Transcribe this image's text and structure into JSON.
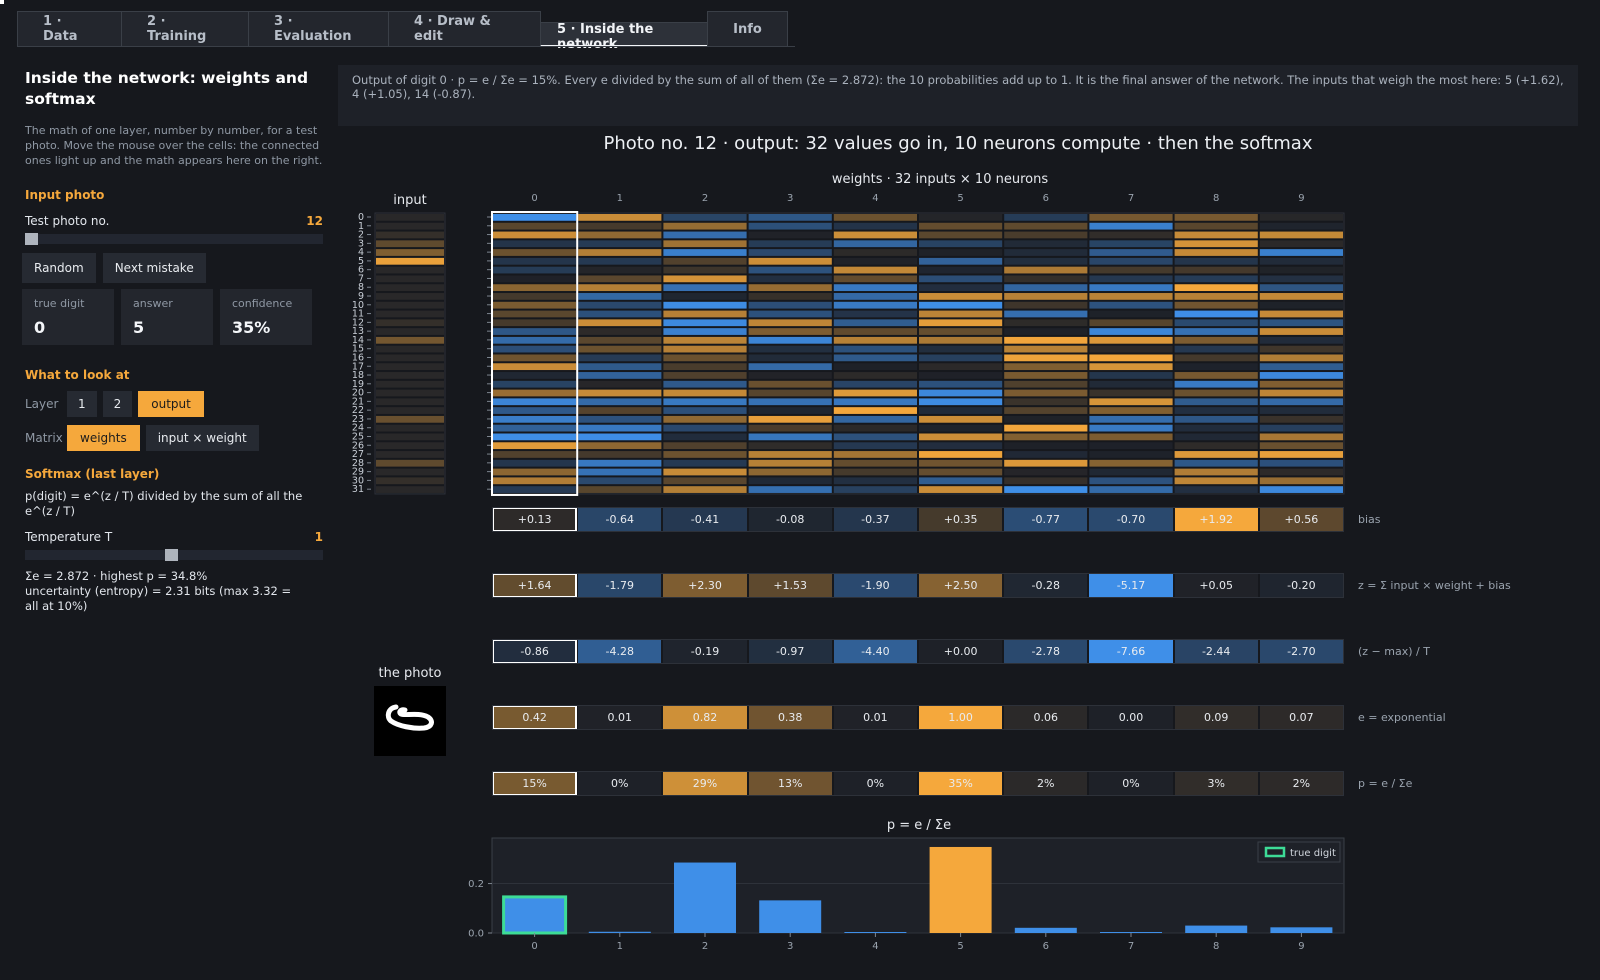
{
  "tabs": [
    {
      "label": "1 · Data",
      "active": false
    },
    {
      "label": "2 · Training",
      "active": false
    },
    {
      "label": "3 · Evaluation",
      "active": false
    },
    {
      "label": "4 · Draw & edit",
      "active": false
    },
    {
      "label": "5 · Inside the network",
      "active": true
    },
    {
      "label": "Info",
      "active": false
    }
  ],
  "sidebar": {
    "title": "Inside the network: weights and softmax",
    "description": "The math of one layer, number by number, for a test photo. Move the mouse over the cells: the connected ones light up and the math appears here on the right.",
    "input_section": "Input photo",
    "photo_label": "Test photo no.",
    "photo_value": "12",
    "photo_slider_fraction": 0.0,
    "random_button": "Random",
    "next_mistake_button": "Next mistake",
    "cards": [
      {
        "key": "true digit",
        "value": "0"
      },
      {
        "key": "answer",
        "value": "5"
      },
      {
        "key": "confidence",
        "value": "35%"
      }
    ],
    "look_section": "What to look at",
    "layer_label": "Layer",
    "layer_options": [
      "1",
      "2",
      "output"
    ],
    "layer_selected": "output",
    "matrix_label": "Matrix",
    "matrix_options": [
      "weights",
      "input × weight"
    ],
    "matrix_selected": "weights",
    "softmax_section": "Softmax (last layer)",
    "softmax_formula": "p(digit) = e^(z / T)  divided by the sum of all the e^(z / T)",
    "temp_label": "Temperature T",
    "temp_value": "1",
    "temp_slider_fraction": 0.49,
    "stats_line1": "Σe = 2.872   ·   highest p = 34.8%",
    "stats_line2": "uncertainty (entropy) = 2.31 bits  (max 3.32 = all at 10%)"
  },
  "info_text": "Output of digit 0 · p = e / Σe = 15%. Every e divided by the sum of all of them (Σe = 2.872): the 10 probabilities add up to 1. It is the final answer of the network. The inputs that weigh the most here: 5 (+1.62), 4 (+1.05), 14 (-0.87).",
  "panel_title": "Photo no. 12 · output: 32 values go in, 10 neurons compute · then the softmax",
  "weights_title": "weights  ·  32 inputs × 10 neurons",
  "input_label": "input",
  "photo_caption": "the photo",
  "selected_column": 0,
  "colors": {
    "positive": "#f5a83c",
    "negative": "#3f8fe8",
    "true_digit_outline": "#3ddc97"
  },
  "neurons": [
    "0",
    "1",
    "2",
    "3",
    "4",
    "5",
    "6",
    "7",
    "8",
    "9"
  ],
  "inputs": [
    "0",
    "1",
    "2",
    "3",
    "4",
    "5",
    "6",
    "7",
    "8",
    "9",
    "10",
    "11",
    "12",
    "13",
    "14",
    "15",
    "16",
    "17",
    "18",
    "19",
    "20",
    "21",
    "22",
    "23",
    "24",
    "25",
    "26",
    "27",
    "28",
    "29",
    "30",
    "31"
  ],
  "input_values": [
    0.05,
    0.05,
    0.1,
    0.3,
    0.45,
    0.95,
    0.05,
    0.05,
    0.05,
    0.05,
    0.05,
    0.05,
    0.1,
    0.05,
    0.4,
    0.05,
    0.05,
    0.05,
    0.05,
    0.05,
    0.05,
    0.05,
    0.05,
    0.35,
    0.05,
    0.05,
    0.05,
    0.05,
    0.3,
    0.05,
    0.1,
    0.05
  ],
  "rows": [
    {
      "tag": "bias",
      "values": [
        "+0.13",
        "-0.64",
        "-0.41",
        "-0.08",
        "-0.37",
        "+0.35",
        "-0.77",
        "-0.70",
        "+1.92",
        "+0.56"
      ],
      "num": [
        0.13,
        -0.64,
        -0.41,
        -0.08,
        -0.37,
        0.35,
        -0.77,
        -0.7,
        1.92,
        0.56
      ],
      "scale": 1.92
    },
    {
      "tag": "z = Σ input × weight + bias",
      "values": [
        "+1.64",
        "-1.79",
        "+2.30",
        "+1.53",
        "-1.90",
        "+2.50",
        "-0.28",
        "-5.17",
        "+0.05",
        "-0.20"
      ],
      "num": [
        1.64,
        -1.79,
        2.3,
        1.53,
        -1.9,
        2.5,
        -0.28,
        -5.17,
        0.05,
        -0.2
      ],
      "scale": 5.17
    },
    {
      "tag": "(z − max) / T",
      "values": [
        "-0.86",
        "-4.28",
        "-0.19",
        "-0.97",
        "-4.40",
        "+0.00",
        "-2.78",
        "-7.66",
        "-2.44",
        "-2.70"
      ],
      "num": [
        -0.86,
        -4.28,
        -0.19,
        -0.97,
        -4.4,
        0.0,
        -2.78,
        -7.66,
        -2.44,
        -2.7
      ],
      "scale": 7.66
    },
    {
      "tag": "e = exponential",
      "values": [
        "0.42",
        "0.01",
        "0.82",
        "0.38",
        "0.01",
        "1.00",
        "0.06",
        "0.00",
        "0.09",
        "0.07"
      ],
      "num": [
        0.42,
        0.01,
        0.82,
        0.38,
        0.01,
        1.0,
        0.06,
        0.0,
        0.09,
        0.07
      ],
      "scale": 1.0
    },
    {
      "tag": "p = e / Σe",
      "values": [
        "15%",
        "0%",
        "29%",
        "13%",
        "0%",
        "35%",
        "2%",
        "0%",
        "3%",
        "2%"
      ],
      "num": [
        0.42,
        0.0,
        0.82,
        0.38,
        0.0,
        1.0,
        0.06,
        0.0,
        0.09,
        0.07
      ],
      "scale": 1.0
    }
  ],
  "chart_data": {
    "type": "bar",
    "title": "p = e / Σe",
    "categories": [
      "0",
      "1",
      "2",
      "3",
      "4",
      "5",
      "6",
      "7",
      "8",
      "9"
    ],
    "values": [
      0.146,
      0.005,
      0.285,
      0.132,
      0.004,
      0.348,
      0.021,
      0.0,
      0.03,
      0.023
    ],
    "highlight_index": 5,
    "true_digit_index": 0,
    "ylim": [
      0,
      0.36
    ],
    "yticks": [
      "0.0",
      "0.2"
    ],
    "ytick_values": [
      0.0,
      0.2
    ],
    "legend": "true digit",
    "legend_position": "top-right"
  }
}
